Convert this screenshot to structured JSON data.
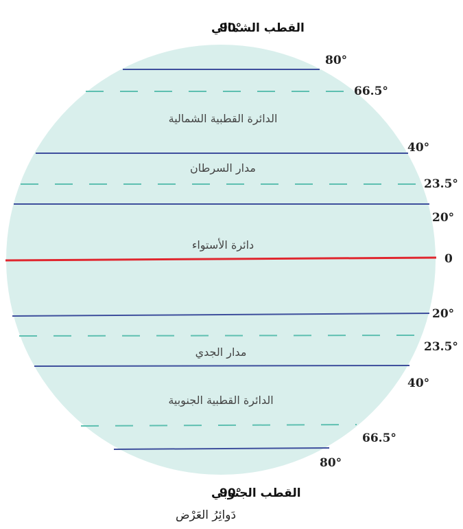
{
  "colors": {
    "globe_fill": "#d9efec",
    "latitude_line": "#3d4e9c",
    "dashed_line": "#5dbfb0",
    "equator": "#e0262e",
    "text": "#222222"
  },
  "poles": {
    "north_label": "القطب الشمالي",
    "north_degree": "90°",
    "south_label": "القطب الجنوبي",
    "south_degree": "90°"
  },
  "regions": {
    "arctic_circle": "الدائرة القطبية الشمالية",
    "tropic_cancer": "مدار السرطان",
    "equator": "دائرة الأستواء",
    "tropic_capricorn": "مدار الجدي",
    "antarctic_circle": "الدائرة القطبية الجنوبية"
  },
  "latitudes": [
    {
      "label": "80°",
      "value": 80,
      "style": "solid"
    },
    {
      "label": "66.5°",
      "value": 66.5,
      "style": "dashed"
    },
    {
      "label": "40°",
      "value": 40,
      "style": "solid"
    },
    {
      "label": "23.5°",
      "value": 23.5,
      "style": "dashed"
    },
    {
      "label": "20°",
      "value": 20,
      "style": "solid"
    },
    {
      "label": "0",
      "value": 0,
      "style": "equator"
    },
    {
      "label": "20°",
      "value": -20,
      "style": "solid"
    },
    {
      "label": "23.5°",
      "value": -23.5,
      "style": "dashed"
    },
    {
      "label": "40°",
      "value": -40,
      "style": "solid"
    },
    {
      "label": "66.5°",
      "value": -66.5,
      "style": "dashed"
    },
    {
      "label": "80°",
      "value": -80,
      "style": "solid"
    }
  ],
  "caption": "دَوائِرُ العَرْض"
}
